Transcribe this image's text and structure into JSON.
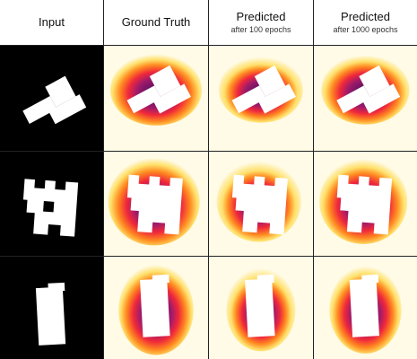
{
  "columns": [
    {
      "title": "Input",
      "subtitle": ""
    },
    {
      "title": "Ground Truth",
      "subtitle": ""
    },
    {
      "title": "Predicted",
      "subtitle": "after 100 epochs"
    },
    {
      "title": "Predicted",
      "subtitle": "after 1000 epochs"
    }
  ],
  "rows": [
    {
      "shape": "zigzag-polyomino"
    },
    {
      "shape": "h-like-polyomino"
    },
    {
      "shape": "vertical-rectangle"
    }
  ],
  "colors": {
    "background_input": "#000000",
    "shape": "#ffffff",
    "heat_near": "#2d0a4a",
    "heat_mid": "#e8203a",
    "heat_far": "#fff8cc",
    "grid_line": "#222222"
  }
}
